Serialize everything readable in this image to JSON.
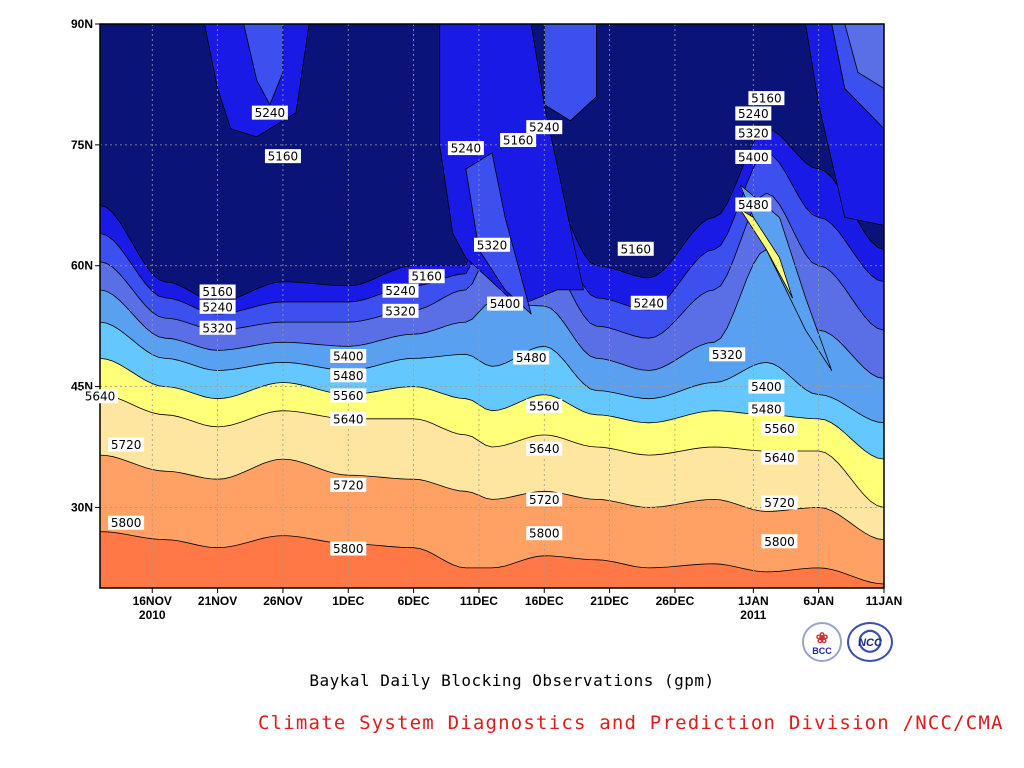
{
  "chart_data": {
    "type": "contour",
    "title": "Baykal Daily Blocking Observations (gpm)",
    "credit": "Climate System Diagnostics and Prediction Division /NCC/CMA",
    "x_axis": {
      "start": "2010-11-12",
      "end": "2011-01-11",
      "ticks": [
        {
          "date": "2010-11-16",
          "label": "16NOV",
          "sublabel": "2010"
        },
        {
          "date": "2010-11-21",
          "label": "21NOV",
          "sublabel": ""
        },
        {
          "date": "2010-11-26",
          "label": "26NOV",
          "sublabel": ""
        },
        {
          "date": "2010-12-01",
          "label": "1DEC",
          "sublabel": ""
        },
        {
          "date": "2010-12-06",
          "label": "6DEC",
          "sublabel": ""
        },
        {
          "date": "2010-12-11",
          "label": "11DEC",
          "sublabel": ""
        },
        {
          "date": "2010-12-16",
          "label": "16DEC",
          "sublabel": ""
        },
        {
          "date": "2010-12-21",
          "label": "21DEC",
          "sublabel": ""
        },
        {
          "date": "2010-12-26",
          "label": "26DEC",
          "sublabel": ""
        },
        {
          "date": "2011-01-01",
          "label": "1JAN",
          "sublabel": "2011"
        },
        {
          "date": "2011-01-06",
          "label": "6JAN",
          "sublabel": ""
        },
        {
          "date": "2011-01-11",
          "label": "11JAN",
          "sublabel": ""
        }
      ]
    },
    "y_axis": {
      "range": [
        20,
        90
      ],
      "ticks": [
        {
          "value": 30,
          "label": "30N"
        },
        {
          "value": 45,
          "label": "45N"
        },
        {
          "value": 60,
          "label": "60N"
        },
        {
          "value": 75,
          "label": "75N"
        },
        {
          "value": 90,
          "label": "90N"
        }
      ]
    },
    "grid": true,
    "contour_levels": [
      {
        "value": 5160,
        "color": "#1a1ae6"
      },
      {
        "value": 5240,
        "color": "#3c50f0"
      },
      {
        "value": 5320,
        "color": "#5a6ee6"
      },
      {
        "value": 5400,
        "color": "#5aa0f0"
      },
      {
        "value": 5480,
        "color": "#64c8ff"
      },
      {
        "value": 5560,
        "color": "#ffff78"
      },
      {
        "value": 5640,
        "color": "#ffe6a0"
      },
      {
        "value": 5720,
        "color": "#ffa064"
      },
      {
        "value": 5800,
        "color": "#ff7846"
      },
      {
        "value": 5880,
        "color": "#f06e78"
      }
    ],
    "below_lowest_color": "#0a1478",
    "contour_labels": [
      {
        "text": "5240",
        "date": "2010-11-25",
        "lat": 79
      },
      {
        "text": "5160",
        "date": "2010-11-26",
        "lat": 73.6
      },
      {
        "text": "5160",
        "date": "2010-11-21",
        "lat": 56.8
      },
      {
        "text": "5240",
        "date": "2010-11-21",
        "lat": 54.9
      },
      {
        "text": "5320",
        "date": "2010-11-21",
        "lat": 52.3
      },
      {
        "text": "5160",
        "date": "2010-12-07",
        "lat": 58.7
      },
      {
        "text": "5240",
        "date": "2010-12-05",
        "lat": 56.9
      },
      {
        "text": "5320",
        "date": "2010-12-05",
        "lat": 54.4
      },
      {
        "text": "5400",
        "date": "2010-12-01",
        "lat": 48.8
      },
      {
        "text": "5480",
        "date": "2010-12-01",
        "lat": 46.4
      },
      {
        "text": "5560",
        "date": "2010-12-01",
        "lat": 43.9
      },
      {
        "text": "5640",
        "date": "2010-11-12",
        "lat": 43.8
      },
      {
        "text": "5640",
        "date": "2010-12-01",
        "lat": 41.0
      },
      {
        "text": "5720",
        "date": "2010-11-14",
        "lat": 37.8
      },
      {
        "text": "5720",
        "date": "2010-12-01",
        "lat": 32.8
      },
      {
        "text": "5800",
        "date": "2010-11-14",
        "lat": 28.1
      },
      {
        "text": "5800",
        "date": "2010-12-01",
        "lat": 24.9
      },
      {
        "text": "5240",
        "date": "2010-12-10",
        "lat": 74.6
      },
      {
        "text": "5240",
        "date": "2010-12-16",
        "lat": 77.2
      },
      {
        "text": "5160",
        "date": "2010-12-14",
        "lat": 75.6
      },
      {
        "text": "5320",
        "date": "2010-12-12",
        "lat": 62.6
      },
      {
        "text": "5400",
        "date": "2010-12-13",
        "lat": 55.3
      },
      {
        "text": "5480",
        "date": "2010-12-15",
        "lat": 48.6
      },
      {
        "text": "5560",
        "date": "2010-12-16",
        "lat": 42.6
      },
      {
        "text": "5640",
        "date": "2010-12-16",
        "lat": 37.3
      },
      {
        "text": "5720",
        "date": "2010-12-16",
        "lat": 31.0
      },
      {
        "text": "5800",
        "date": "2010-12-16",
        "lat": 26.8
      },
      {
        "text": "5160",
        "date": "2010-12-23",
        "lat": 62.1
      },
      {
        "text": "5240",
        "date": "2010-12-24",
        "lat": 55.4
      },
      {
        "text": "5320",
        "date": "2010-12-30",
        "lat": 49.0
      },
      {
        "text": "5160",
        "date": "2011-01-02",
        "lat": 80.8
      },
      {
        "text": "5240",
        "date": "2011-01-01",
        "lat": 78.9
      },
      {
        "text": "5320",
        "date": "2011-01-01",
        "lat": 76.5
      },
      {
        "text": "5400",
        "date": "2011-01-01",
        "lat": 73.5
      },
      {
        "text": "5480",
        "date": "2011-01-01",
        "lat": 67.6
      },
      {
        "text": "5400",
        "date": "2011-01-02",
        "lat": 45.0
      },
      {
        "text": "5480",
        "date": "2011-01-02",
        "lat": 42.2
      },
      {
        "text": "5560",
        "date": "2011-01-03",
        "lat": 39.8
      },
      {
        "text": "5640",
        "date": "2011-01-03",
        "lat": 36.2
      },
      {
        "text": "5720",
        "date": "2011-01-03",
        "lat": 30.6
      },
      {
        "text": "5800",
        "date": "2011-01-03",
        "lat": 25.8
      }
    ]
  },
  "logos": {
    "left": "BCC",
    "right": "NCC"
  }
}
